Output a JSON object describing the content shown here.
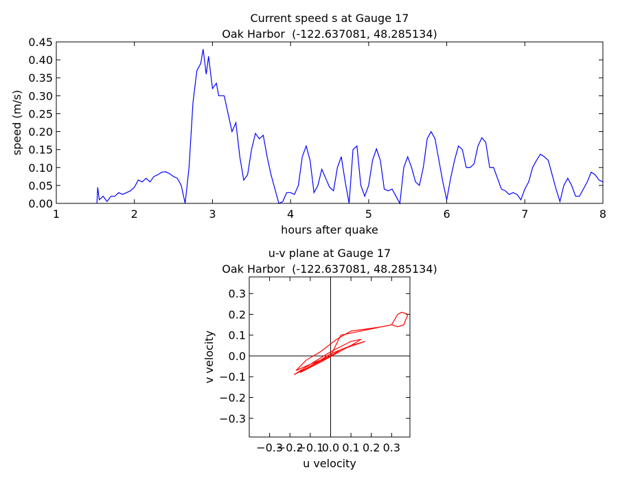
{
  "chart_data": [
    {
      "type": "line",
      "title": "Current speed s at Gauge 17",
      "subtitle": "Oak Harbor  (-122.637081, 48.285134)",
      "xlabel": "hours after quake",
      "ylabel": "speed (m/s)",
      "color": "#0000ff",
      "x": [
        1.52,
        1.53,
        1.55,
        1.6,
        1.65,
        1.7,
        1.75,
        1.8,
        1.85,
        1.9,
        1.95,
        2.0,
        2.05,
        2.1,
        2.15,
        2.2,
        2.25,
        2.3,
        2.35,
        2.4,
        2.45,
        2.5,
        2.55,
        2.6,
        2.65,
        2.7,
        2.75,
        2.8,
        2.85,
        2.88,
        2.92,
        2.95,
        3.0,
        3.05,
        3.08,
        3.15,
        3.2,
        3.25,
        3.3,
        3.35,
        3.4,
        3.45,
        3.5,
        3.55,
        3.6,
        3.65,
        3.7,
        3.75,
        3.8,
        3.85,
        3.9,
        3.95,
        4.0,
        4.05,
        4.1,
        4.15,
        4.2,
        4.25,
        4.3,
        4.35,
        4.4,
        4.45,
        4.5,
        4.55,
        4.6,
        4.65,
        4.7,
        4.75,
        4.8,
        4.85,
        4.9,
        4.95,
        5.0,
        5.05,
        5.1,
        5.15,
        5.2,
        5.25,
        5.3,
        5.35,
        5.4,
        5.45,
        5.5,
        5.55,
        5.6,
        5.65,
        5.7,
        5.75,
        5.8,
        5.85,
        5.9,
        5.95,
        6.0,
        6.05,
        6.1,
        6.15,
        6.2,
        6.25,
        6.3,
        6.35,
        6.4,
        6.45,
        6.5,
        6.55,
        6.6,
        6.65,
        6.7,
        6.75,
        6.8,
        6.85,
        6.9,
        6.95,
        7.0,
        7.05,
        7.1,
        7.15,
        7.2,
        7.25,
        7.3,
        7.35,
        7.4,
        7.45,
        7.5,
        7.55,
        7.6,
        7.65,
        7.7,
        7.75,
        7.8,
        7.85,
        7.9,
        7.95,
        8.0
      ],
      "values": [
        0.0,
        0.045,
        0.01,
        0.02,
        0.005,
        0.02,
        0.02,
        0.03,
        0.025,
        0.03,
        0.035,
        0.045,
        0.065,
        0.06,
        0.07,
        0.06,
        0.075,
        0.08,
        0.087,
        0.088,
        0.083,
        0.075,
        0.07,
        0.05,
        0.0,
        0.1,
        0.28,
        0.37,
        0.39,
        0.43,
        0.36,
        0.41,
        0.32,
        0.335,
        0.3,
        0.3,
        0.25,
        0.2,
        0.225,
        0.13,
        0.065,
        0.08,
        0.15,
        0.195,
        0.18,
        0.19,
        0.13,
        0.08,
        0.04,
        0.0,
        0.005,
        0.03,
        0.03,
        0.025,
        0.05,
        0.13,
        0.16,
        0.12,
        0.03,
        0.05,
        0.095,
        0.07,
        0.045,
        0.035,
        0.1,
        0.13,
        0.06,
        0.0,
        0.15,
        0.16,
        0.05,
        0.02,
        0.05,
        0.12,
        0.152,
        0.12,
        0.04,
        0.035,
        0.04,
        0.02,
        0.0,
        0.1,
        0.13,
        0.1,
        0.06,
        0.05,
        0.1,
        0.18,
        0.2,
        0.18,
        0.12,
        0.06,
        0.01,
        0.07,
        0.12,
        0.16,
        0.15,
        0.1,
        0.1,
        0.11,
        0.16,
        0.183,
        0.17,
        0.1,
        0.1,
        0.07,
        0.04,
        0.035,
        0.025,
        0.03,
        0.025,
        0.01,
        0.04,
        0.06,
        0.1,
        0.12,
        0.137,
        0.13,
        0.12,
        0.08,
        0.04,
        0.005,
        0.05,
        0.07,
        0.05,
        0.02,
        0.02,
        0.04,
        0.06,
        0.087,
        0.08,
        0.065,
        0.06
      ],
      "xlim": [
        1,
        8
      ],
      "xticks": [
        1,
        2,
        3,
        4,
        5,
        6,
        7,
        8
      ],
      "ylim": [
        0,
        0.45
      ],
      "yticks": [
        {
          "value": 0,
          "label": "0.00"
        },
        {
          "value": 0.05,
          "label": "0.05"
        },
        {
          "value": 0.1,
          "label": "0.10"
        },
        {
          "value": 0.15,
          "label": "0.15"
        },
        {
          "value": 0.2,
          "label": "0.20"
        },
        {
          "value": 0.25,
          "label": "0.25"
        },
        {
          "value": 0.3,
          "label": "0.30"
        },
        {
          "value": 0.35,
          "label": "0.35"
        },
        {
          "value": 0.4,
          "label": "0.40"
        },
        {
          "value": 0.45,
          "label": "0.45"
        }
      ]
    },
    {
      "type": "line",
      "title": "u-v plane at Gauge 17",
      "subtitle": "Oak Harbor  (-122.637081, 48.285134)",
      "xlabel": "u velocity",
      "ylabel": "v velocity",
      "color": "#ff0000",
      "zero_lines": true,
      "x": [
        0.0,
        0.05,
        0.1,
        0.15,
        0.1,
        0.0,
        -0.1,
        -0.18,
        -0.12,
        -0.05,
        0.0,
        0.1,
        0.17,
        0.08,
        -0.05,
        -0.15,
        -0.1,
        0.0,
        0.05,
        0.1,
        0.2,
        0.3,
        0.33,
        0.35,
        0.38,
        0.36,
        0.33,
        0.3,
        0.25,
        0.18,
        0.1,
        0.03,
        -0.05,
        -0.12,
        -0.17,
        -0.1,
        0.0
      ],
      "values": [
        0.0,
        0.03,
        0.05,
        0.08,
        0.07,
        0.02,
        -0.04,
        -0.09,
        -0.06,
        -0.02,
        0.01,
        0.05,
        0.07,
        0.04,
        -0.03,
        -0.08,
        -0.05,
        0.0,
        0.1,
        0.11,
        0.13,
        0.15,
        0.2,
        0.21,
        0.2,
        0.15,
        0.14,
        0.15,
        0.14,
        0.13,
        0.12,
        0.08,
        0.02,
        -0.02,
        -0.07,
        -0.04,
        0.0
      ],
      "xlim": [
        -0.4,
        0.39
      ],
      "ylim": [
        -0.39,
        0.38
      ],
      "xticks": [
        {
          "value": -0.3,
          "label": "−0.3"
        },
        {
          "value": -0.2,
          "label": "−0.2"
        },
        {
          "value": -0.1,
          "label": "−0.1"
        },
        {
          "value": 0,
          "label": "0.0"
        },
        0.1,
        0.2,
        0.3
      ],
      "yticks": [
        {
          "value": -0.3,
          "label": "−0.3"
        },
        {
          "value": -0.2,
          "label": "−0.2"
        },
        {
          "value": -0.1,
          "label": "−0.1"
        },
        {
          "value": 0,
          "label": "0.0"
        },
        0.1,
        0.2,
        0.3
      ]
    }
  ]
}
